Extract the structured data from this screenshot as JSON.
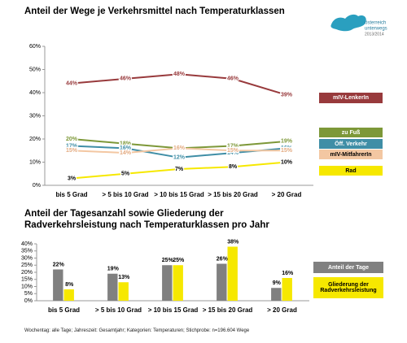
{
  "chart_data": [
    {
      "type": "line",
      "title": "Anteil der Wege je Verkehrsmittel nach Temperaturklassen",
      "categories": [
        "bis 5 Grad",
        "> 5 bis 10 Grad",
        "> 10 bis 15 Grad",
        "> 15 bis 20 Grad",
        "> 20 Grad"
      ],
      "ylim": [
        0,
        60
      ],
      "yticks": [
        {
          "value": 0,
          "label": "0%"
        },
        {
          "value": 10,
          "label": "10%"
        },
        {
          "value": 20,
          "label": "20%"
        },
        {
          "value": 30,
          "label": "30%"
        },
        {
          "value": 40,
          "label": "40%"
        },
        {
          "value": 50,
          "label": "50%"
        },
        {
          "value": 60,
          "label": "60%"
        }
      ],
      "series": [
        {
          "name": "mIV-LenkerIn",
          "color": "#983a3c",
          "label_color": "#983a3c",
          "values": [
            44,
            46,
            48,
            46,
            39
          ],
          "value_labels": [
            "44%",
            "46%",
            "48%",
            "46%",
            "39%"
          ]
        },
        {
          "name": "zu Fuß",
          "color": "#7d9838",
          "label_color": "#7d9838",
          "values": [
            20,
            18,
            16,
            17,
            19
          ],
          "value_labels": [
            "20%",
            "18%",
            "16%",
            "17%",
            "19%"
          ]
        },
        {
          "name": "Öff. Verkehr",
          "color": "#3f8ea6",
          "label_color": "#3f8ea6",
          "values": [
            17,
            16,
            12,
            14,
            16
          ],
          "value_labels": [
            "17%",
            "16%",
            "12%",
            "14%",
            "16%"
          ]
        },
        {
          "name": "mIV-MitfahrerIn",
          "color": "#f3c7a2",
          "label_color": "#e3aa80",
          "values": [
            15,
            14,
            16,
            15,
            15
          ],
          "value_labels": [
            "15%",
            "14%",
            "16%",
            "15%",
            "15%"
          ]
        },
        {
          "name": "Rad",
          "color": "#f6e800",
          "label_color": "#000000",
          "values": [
            3,
            5,
            7,
            8,
            10
          ],
          "value_labels": [
            "3%",
            "5%",
            "7%",
            "8%",
            "10%"
          ]
        }
      ],
      "grid": false
    },
    {
      "type": "bar",
      "title": "Anteil der Tagesanzahl sowie Gliederung der Radverkehrsleistung nach Temperaturklassen pro Jahr",
      "categories": [
        "bis 5 Grad",
        "> 5 bis 10 Grad",
        "> 10 bis 15 Grad",
        "> 15 bis 20 Grad",
        "> 20 Grad"
      ],
      "ylim": [
        0,
        40
      ],
      "yticks": [
        {
          "value": 0,
          "label": "0%"
        },
        {
          "value": 5,
          "label": "5%"
        },
        {
          "value": 10,
          "label": "10%"
        },
        {
          "value": 15,
          "label": "15%"
        },
        {
          "value": 20,
          "label": "20%"
        },
        {
          "value": 25,
          "label": "25%"
        },
        {
          "value": 30,
          "label": "30%"
        },
        {
          "value": 35,
          "label": "35%"
        },
        {
          "value": 40,
          "label": "40%"
        }
      ],
      "series": [
        {
          "name": "Anteil der Tage",
          "color": "#808080",
          "label_color": "#000000",
          "values": [
            22,
            19,
            25,
            26,
            9
          ],
          "value_labels": [
            "22%",
            "19%",
            "25%",
            "26%",
            "9%"
          ]
        },
        {
          "name": "Gliederung der Radverkehrsleistung",
          "color": "#f6e800",
          "label_color": "#000000",
          "values": [
            8,
            13,
            25,
            38,
            16
          ],
          "value_labels": [
            "8%",
            "13%",
            "25%",
            "38%",
            "16%"
          ]
        }
      ],
      "grid": false
    }
  ],
  "logo": {
    "lines": [
      "österreich",
      "unterwegs",
      "2013/2014"
    ]
  },
  "footnote": "Wochentag: alle Tage; Jahreszeit: Gesamtjahr; Kategorien: Temperaturen; Stichprobe: n=196.604 Wege"
}
